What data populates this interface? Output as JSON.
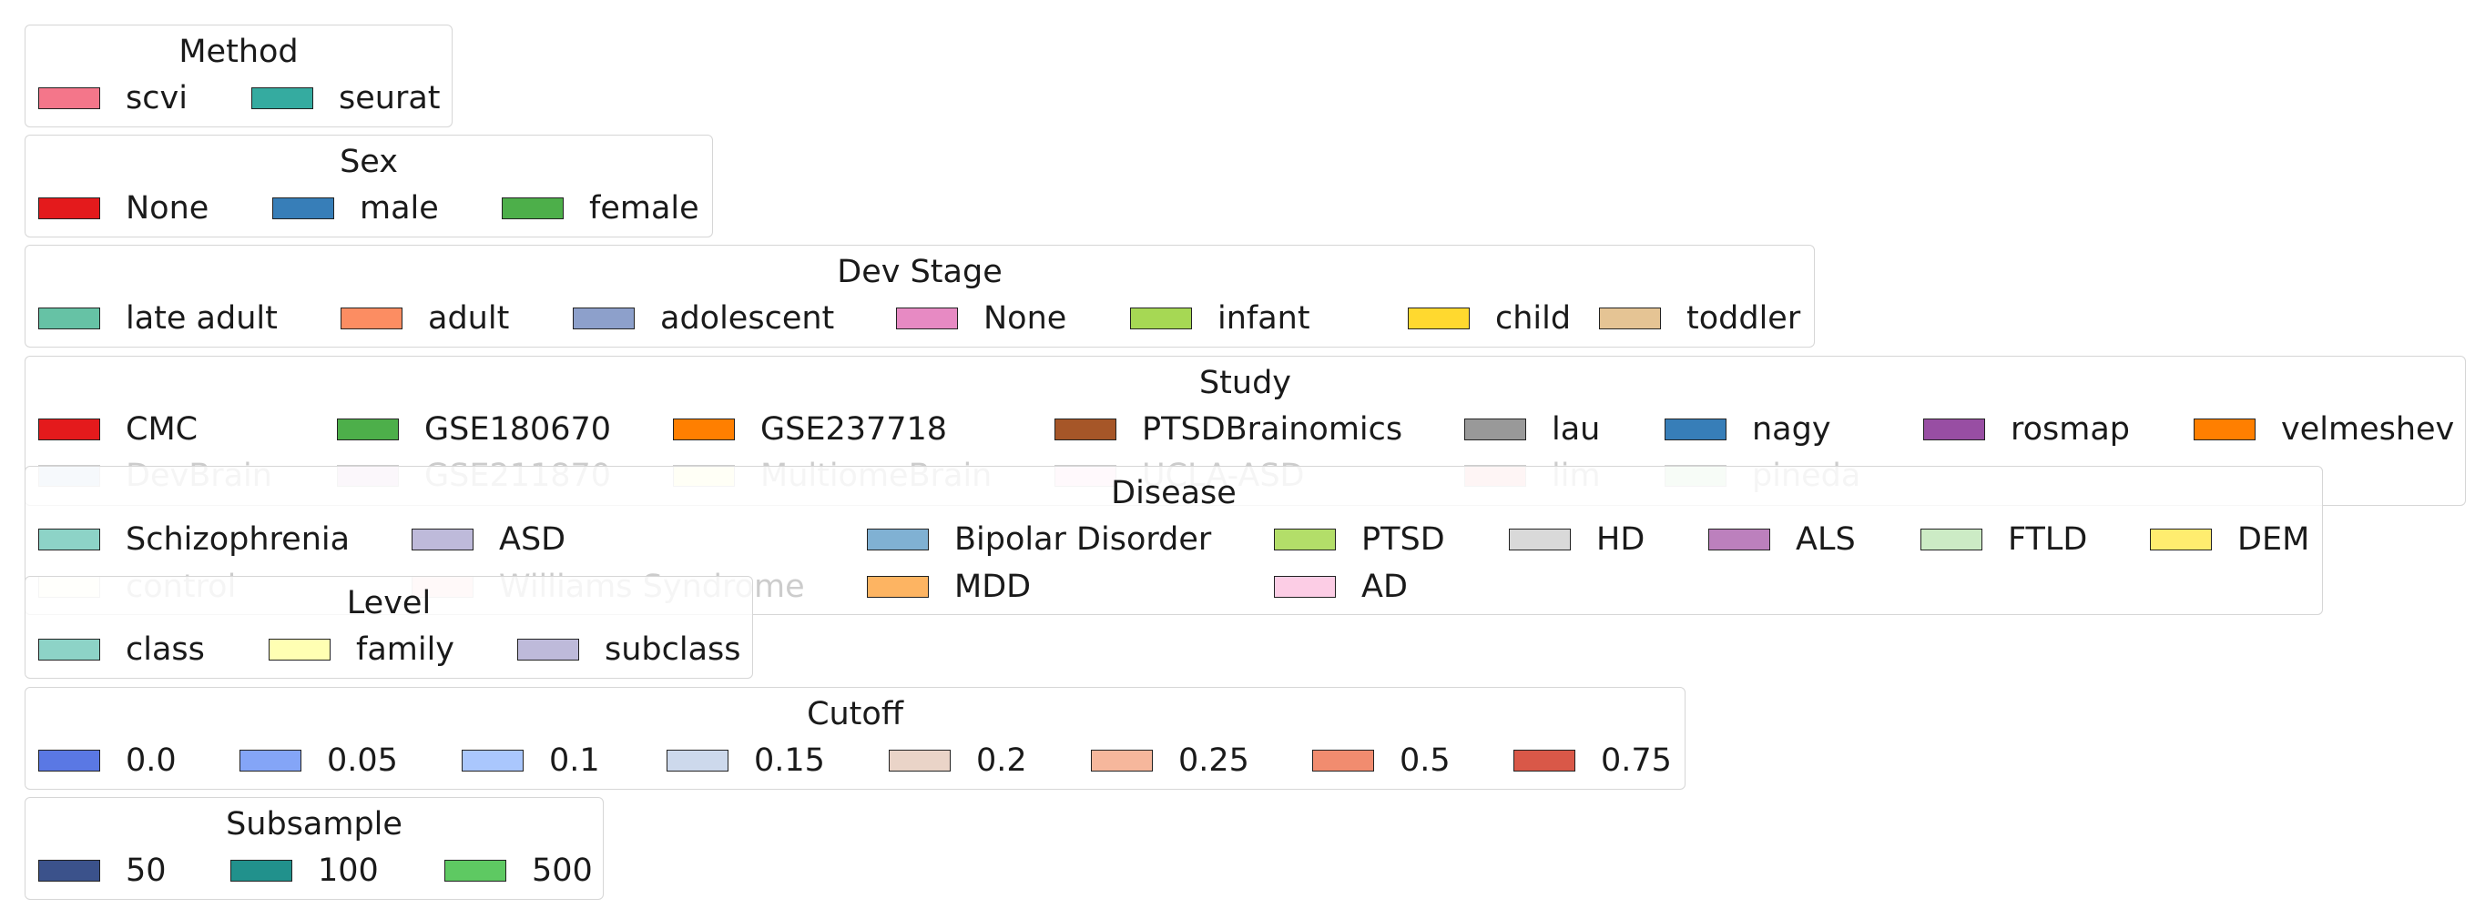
{
  "chart_data": {
    "type": "legend",
    "legends": [
      {
        "title": "Method",
        "entries": [
          {
            "label": "scvi",
            "color": "#f4768a"
          },
          {
            "label": "seurat",
            "color": "#35aba0"
          }
        ]
      },
      {
        "title": "Sex",
        "entries": [
          {
            "label": "None",
            "color": "#e41a1c"
          },
          {
            "label": "male",
            "color": "#377eb8"
          },
          {
            "label": "female",
            "color": "#4daf4a"
          }
        ]
      },
      {
        "title": "Dev Stage",
        "entries": [
          {
            "label": "late adult",
            "color": "#66c2a5"
          },
          {
            "label": "adult",
            "color": "#fc8d62"
          },
          {
            "label": "adolescent",
            "color": "#8da0cb"
          },
          {
            "label": "None",
            "color": "#e78ac3"
          },
          {
            "label": "infant",
            "color": "#a6d854"
          },
          {
            "label": "child",
            "color": "#ffd92f"
          },
          {
            "label": "toddler",
            "color": "#e5c494"
          }
        ]
      },
      {
        "title": "Study",
        "entries": [
          {
            "label": "CMC",
            "color": "#e41a1c"
          },
          {
            "label": "GSE180670",
            "color": "#4daf4a"
          },
          {
            "label": "GSE237718",
            "color": "#ff7f00"
          },
          {
            "label": "PTSDBrainomics",
            "color": "#a65628"
          },
          {
            "label": "lau",
            "color": "#999999"
          },
          {
            "label": "nagy",
            "color": "#377eb8"
          },
          {
            "label": "rosmap",
            "color": "#984ea3"
          },
          {
            "label": "velmeshev",
            "color": "#ff7f00"
          },
          {
            "label": "DevBrain",
            "color": "#377eb8"
          },
          {
            "label": "GSE211870",
            "color": "#984ea3"
          },
          {
            "label": "MultiomeBrain",
            "color": "#ffff33"
          },
          {
            "label": "UCLA-ASD",
            "color": "#f781bf"
          },
          {
            "label": "lim",
            "color": "#e41a1c"
          },
          {
            "label": "pineda",
            "color": "#4daf4a"
          }
        ]
      },
      {
        "title": "Disease",
        "entries": [
          {
            "label": "Schizophrenia",
            "color": "#8dd3c7"
          },
          {
            "label": "ASD",
            "color": "#bebada"
          },
          {
            "label": "Bipolar Disorder",
            "color": "#80b1d3"
          },
          {
            "label": "PTSD",
            "color": "#b3de69"
          },
          {
            "label": "HD",
            "color": "#d9d9d9"
          },
          {
            "label": "ALS",
            "color": "#bc80bd"
          },
          {
            "label": "FTLD",
            "color": "#ccebc5"
          },
          {
            "label": "DEM",
            "color": "#ffed6f"
          },
          {
            "label": "control",
            "color": "#ffffb3"
          },
          {
            "label": "Williams Syndrome",
            "color": "#fb8072"
          },
          {
            "label": "MDD",
            "color": "#fdb462"
          },
          {
            "label": "AD",
            "color": "#fccde5"
          }
        ]
      },
      {
        "title": "Level",
        "entries": [
          {
            "label": "class",
            "color": "#8dd3c7"
          },
          {
            "label": "family",
            "color": "#ffffb3"
          },
          {
            "label": "subclass",
            "color": "#bebada"
          }
        ]
      },
      {
        "title": "Cutoff",
        "entries": [
          {
            "label": "0.0",
            "color": "#5a78e4"
          },
          {
            "label": "0.05",
            "color": "#84a5f7"
          },
          {
            "label": "0.1",
            "color": "#aac7fd"
          },
          {
            "label": "0.15",
            "color": "#cdd9ec"
          },
          {
            "label": "0.2",
            "color": "#ead4c8"
          },
          {
            "label": "0.25",
            "color": "#f6b79c"
          },
          {
            "label": "0.5",
            "color": "#f18c6f"
          },
          {
            "label": "0.75",
            "color": "#d95848"
          }
        ]
      },
      {
        "title": "Subsample",
        "entries": [
          {
            "label": "50",
            "color": "#3b528b"
          },
          {
            "label": "100",
            "color": "#21918c"
          },
          {
            "label": "500",
            "color": "#5ec962"
          }
        ]
      }
    ]
  }
}
